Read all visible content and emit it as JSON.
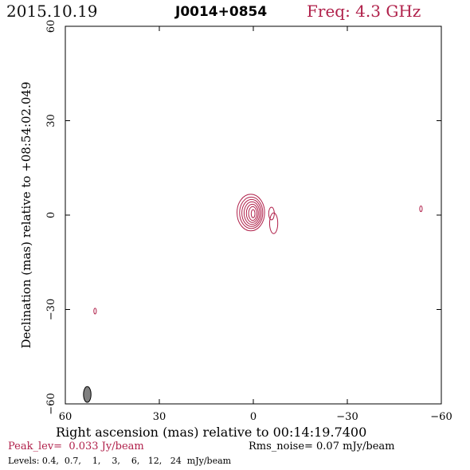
{
  "header": {
    "date": "2015.10.19",
    "source": "J0014+0854",
    "frequency": "Freq: 4.3 GHz"
  },
  "colors": {
    "contour": "#b0204a",
    "axis": "#000000",
    "beam": "#808080"
  },
  "chart_data": {
    "type": "contour",
    "xlabel": "Right ascension (mas) relative to 00:14:19.7400",
    "ylabel": "Declination (mas) relative to +08:54:02.049",
    "xlim": [
      60,
      -60
    ],
    "ylim": [
      -60,
      60
    ],
    "xticks": [
      60,
      30,
      0,
      -30,
      -60
    ],
    "yticks": [
      -60,
      -30,
      0,
      30,
      60
    ],
    "xtick_labels": [
      "60",
      "30",
      "0",
      "−30",
      "−60"
    ],
    "ytick_labels": [
      "−60",
      "−30",
      "0",
      "30",
      "60"
    ],
    "grid": false,
    "peak": "Peak_lev=  0.033 Jy/beam",
    "rms": "Rms_noise= 0.07 mJy/beam",
    "levels_text": "Levels: 0.4,  0.7,    1,    3,    6,   12,   24  mJy/beam",
    "levels_mjy": [
      0.4,
      0.7,
      1,
      3,
      6,
      12,
      24
    ],
    "core": {
      "x": 0.8,
      "y": 0.8,
      "radii": [
        [
          4.4,
          5.8
        ],
        [
          3.7,
          5.0
        ],
        [
          3.1,
          4.3
        ],
        [
          2.5,
          3.6
        ],
        [
          1.9,
          2.9
        ],
        [
          1.3,
          2.2
        ],
        [
          0.6,
          1.3
        ]
      ]
    },
    "jet_components": [
      {
        "x": -6.5,
        "y": -2.6,
        "rx": 1.3,
        "ry": 3.3
      },
      {
        "x": -5.8,
        "y": 0.5,
        "rx": 0.9,
        "ry": 2.0
      }
    ],
    "noise_spots": [
      {
        "x": -53.5,
        "y": 2.0,
        "rx": 0.4,
        "ry": 0.9
      },
      {
        "x": 50.5,
        "y": -30.5,
        "rx": 0.4,
        "ry": 0.9
      }
    ],
    "beam": {
      "x": 53.0,
      "y": -57.0,
      "major_mas": 5.0,
      "minor_mas": 2.4
    }
  }
}
